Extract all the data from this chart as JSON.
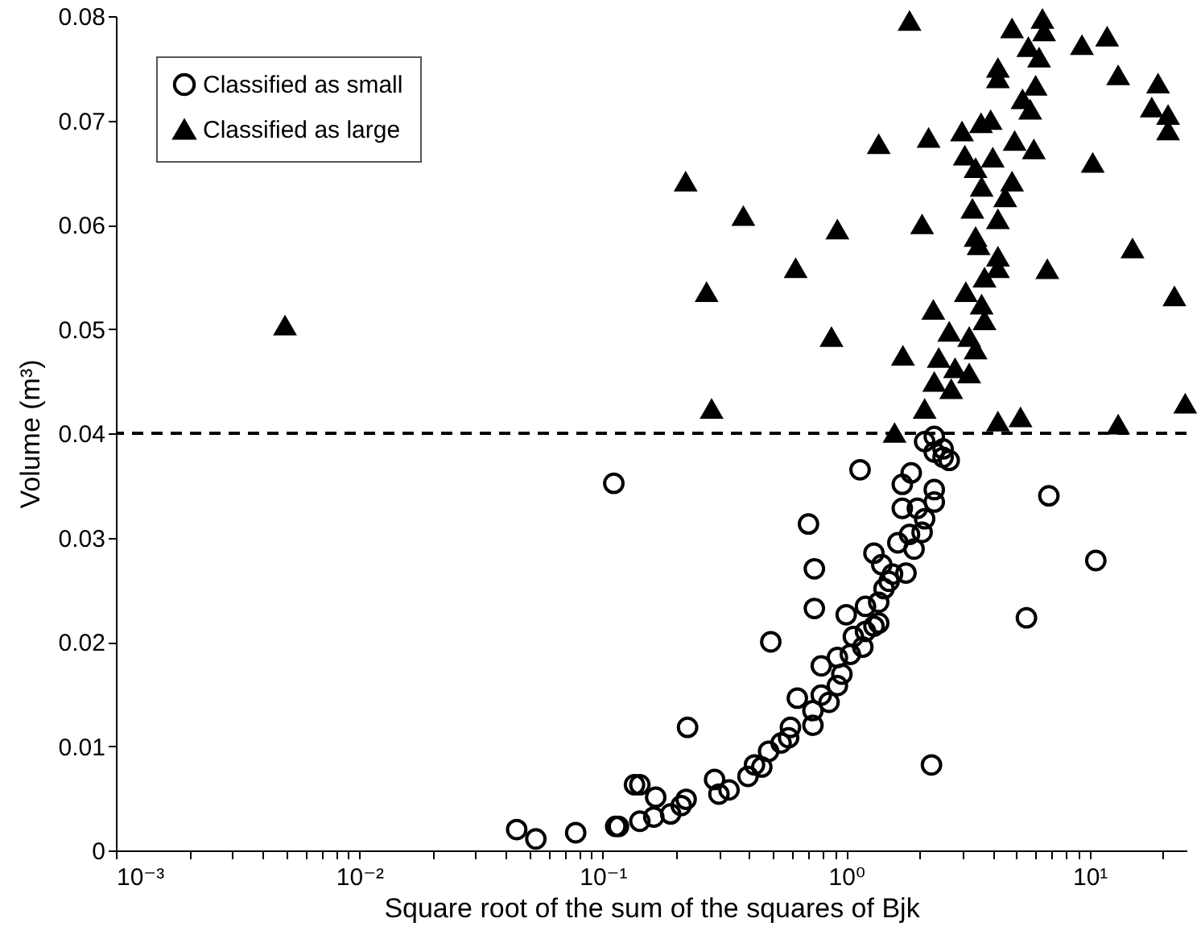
{
  "chart_data": {
    "type": "scatter",
    "xlabel": "Square root of the sum of the squares of Bjk",
    "ylabel": "Volume (m³)",
    "log": "x",
    "xlim": [
      0.001,
      25
    ],
    "ylim": [
      0,
      0.08
    ],
    "xticks": [
      {
        "value": 0.001,
        "label": "10⁻³"
      },
      {
        "value": 0.002,
        "label": null
      },
      {
        "value": 0.003,
        "label": null
      },
      {
        "value": 0.004,
        "label": null
      },
      {
        "value": 0.005,
        "label": null
      },
      {
        "value": 0.006,
        "label": null
      },
      {
        "value": 0.007,
        "label": null
      },
      {
        "value": 0.008,
        "label": null
      },
      {
        "value": 0.009,
        "label": null
      },
      {
        "value": 0.01,
        "label": "10⁻²"
      },
      {
        "value": 0.02,
        "label": null
      },
      {
        "value": 0.03,
        "label": null
      },
      {
        "value": 0.04,
        "label": null
      },
      {
        "value": 0.05,
        "label": null
      },
      {
        "value": 0.06,
        "label": null
      },
      {
        "value": 0.07,
        "label": null
      },
      {
        "value": 0.08,
        "label": null
      },
      {
        "value": 0.09,
        "label": null
      },
      {
        "value": 0.1,
        "label": "10⁻¹"
      },
      {
        "value": 0.2,
        "label": null
      },
      {
        "value": 0.3,
        "label": null
      },
      {
        "value": 0.4,
        "label": null
      },
      {
        "value": 0.5,
        "label": null
      },
      {
        "value": 0.6,
        "label": null
      },
      {
        "value": 0.7,
        "label": null
      },
      {
        "value": 0.8,
        "label": null
      },
      {
        "value": 0.9,
        "label": null
      },
      {
        "value": 1,
        "label": "10⁰"
      },
      {
        "value": 2,
        "label": null
      },
      {
        "value": 3,
        "label": null
      },
      {
        "value": 4,
        "label": null
      },
      {
        "value": 5,
        "label": null
      },
      {
        "value": 6,
        "label": null
      },
      {
        "value": 7,
        "label": null
      },
      {
        "value": 8,
        "label": null
      },
      {
        "value": 9,
        "label": null
      },
      {
        "value": 10,
        "label": "10¹"
      },
      {
        "value": 20,
        "label": null
      }
    ],
    "yticks": [
      0,
      0.01,
      0.02,
      0.03,
      0.04,
      0.05,
      0.06,
      0.07,
      0.08
    ],
    "grid": false,
    "legend": "top left",
    "ref_lines": [
      {
        "axis": "y",
        "value": 0.04,
        "color": "#000000",
        "line_style": "dashed"
      }
    ],
    "series": [
      {
        "name": "Classified as small",
        "color": "#000000",
        "marker": "circle",
        "x": [
          0.111,
          0.0443,
          0.0531,
          0.0774,
          0.113,
          0.135,
          1.14,
          6.8,
          10.6,
          5.5,
          2.24,
          0.7,
          0.74,
          0.74,
          0.49,
          0.223,
          0.142,
          0.165,
          0.116,
          0.142,
          0.162,
          0.19,
          0.21,
          0.22,
          0.288,
          0.3,
          0.33,
          0.395,
          0.42,
          0.45,
          0.48,
          0.54,
          0.58,
          0.59,
          0.63,
          0.73,
          0.73,
          0.79,
          0.85,
          0.79,
          0.92,
          0.96,
          0.92,
          1.04,
          1.07,
          1.0,
          1.17,
          1.2,
          1.3,
          1.2,
          1.36,
          1.36,
          1.43,
          1.5,
          1.4,
          1.3,
          1.55,
          1.76,
          1.63,
          1.82,
          1.9,
          2.05,
          1.7,
          1.96,
          2.1,
          2.3,
          2.3,
          1.7,
          1.85,
          2.1,
          2.3,
          2.5,
          2.65,
          2.3,
          2.5
        ],
        "values": [
          0.0352,
          0.002,
          0.0011,
          0.0017,
          0.0023,
          0.0063,
          0.0365,
          0.034,
          0.0278,
          0.0223,
          0.0082,
          0.0313,
          0.027,
          0.0232,
          0.02,
          0.0118,
          0.0063,
          0.0051,
          0.0023,
          0.0028,
          0.0032,
          0.0035,
          0.0043,
          0.0049,
          0.0068,
          0.0054,
          0.0058,
          0.0071,
          0.0082,
          0.008,
          0.0095,
          0.0103,
          0.0108,
          0.0118,
          0.0146,
          0.0134,
          0.012,
          0.0149,
          0.0142,
          0.0177,
          0.0158,
          0.0169,
          0.0185,
          0.0188,
          0.0205,
          0.0226,
          0.0195,
          0.021,
          0.0215,
          0.0234,
          0.0218,
          0.0238,
          0.0251,
          0.0258,
          0.0274,
          0.0285,
          0.0265,
          0.0266,
          0.0295,
          0.0303,
          0.0289,
          0.0305,
          0.0328,
          0.0328,
          0.0318,
          0.0334,
          0.0346,
          0.0351,
          0.0362,
          0.0392,
          0.0397,
          0.0385,
          0.0374,
          0.0382,
          0.0377
        ]
      },
      {
        "name": "Classified as large",
        "color": "#000000",
        "marker": "triangle",
        "x": [
          1.82,
          4.8,
          6.4,
          6.5,
          5.6,
          6.2,
          9.3,
          11.8,
          4.2,
          4.2,
          13.1,
          19.1,
          18,
          21,
          21,
          6.0,
          5.3,
          5.7,
          10.3,
          1.36,
          2.18,
          2.99,
          3.58,
          3.92,
          3.07,
          4.92,
          5.9,
          3.4,
          4.0,
          4.8,
          3.6,
          4.5,
          3.3,
          4.2,
          3.4,
          3.5,
          4.2,
          4.2,
          3.7,
          3.1,
          3.6,
          2.28,
          3.7,
          2.65,
          3.2,
          3.4,
          2.4,
          2.8,
          3.2,
          2.3,
          2.7,
          2.1,
          1.58,
          1.71,
          4.2,
          5.2,
          13.1,
          24.7,
          22.3,
          15.0,
          6.7,
          2.05,
          0.87,
          0.92,
          0.62,
          0.378,
          0.219,
          0.267,
          0.28,
          0.00495
        ],
        "values": [
          0.0795,
          0.0788,
          0.0797,
          0.0785,
          0.077,
          0.076,
          0.0772,
          0.078,
          0.075,
          0.074,
          0.0743,
          0.0735,
          0.0712,
          0.0705,
          0.069,
          0.0733,
          0.072,
          0.071,
          0.0659,
          0.0677,
          0.0683,
          0.0689,
          0.0697,
          0.07,
          0.0666,
          0.068,
          0.0672,
          0.0654,
          0.0664,
          0.0641,
          0.0636,
          0.0626,
          0.0615,
          0.0605,
          0.0588,
          0.058,
          0.0569,
          0.0558,
          0.0549,
          0.0535,
          0.0523,
          0.0518,
          0.0508,
          0.0497,
          0.0492,
          0.048,
          0.0472,
          0.0462,
          0.0457,
          0.0449,
          0.0442,
          0.0423,
          0.04,
          0.0474,
          0.0411,
          0.0415,
          0.0408,
          0.0428,
          0.0531,
          0.0577,
          0.0557,
          0.06,
          0.0492,
          0.0595,
          0.0558,
          0.0608,
          0.0641,
          0.0535,
          0.0423,
          0.0503
        ]
      }
    ]
  }
}
